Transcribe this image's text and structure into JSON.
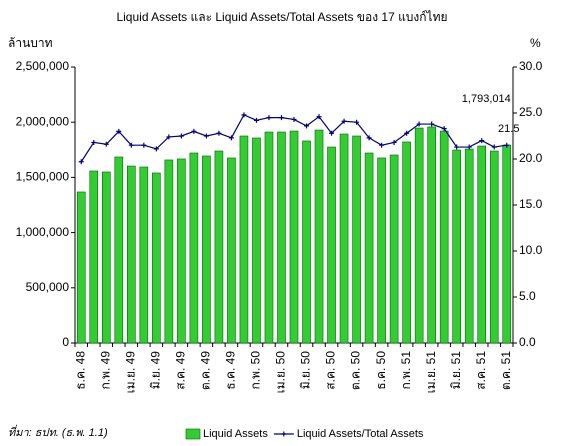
{
  "chart_data": {
    "type": "bar_line",
    "title": "Liquid Assets และ Liquid Assets/Total Assets ของ 17 แบงก์ไทย",
    "y_label": "ล้านบาท",
    "y2_label": "%",
    "source": "ที่มา: ธปท. (ธ.พ. 1.1)",
    "categories": [
      "ธ.ค. 48",
      null,
      "ก.พ. 49",
      null,
      "เม.ย. 49",
      null,
      "มิ.ย. 49",
      null,
      "ส.ค. 49",
      null,
      "ต.ค. 49",
      null,
      "ธ.ค. 49",
      null,
      "ก.พ. 50",
      null,
      "เม.ย. 50",
      null,
      "มิ.ย. 50",
      null,
      "ส.ค. 50",
      null,
      "ต.ค. 50",
      null,
      "ธ.ค. 50",
      null,
      "ก.พ. 51",
      null,
      "เม.ย. 51",
      null,
      "มิ.ย. 51",
      null,
      "ส.ค. 51",
      null,
      "ต.ค. 51"
    ],
    "series": [
      {
        "name": "Liquid Assets",
        "type": "bar",
        "color": "#33cc33",
        "values": [
          1368000,
          1558000,
          1549000,
          1685000,
          1603000,
          1594000,
          1540000,
          1658000,
          1667000,
          1721000,
          1694000,
          1739000,
          1676000,
          1875000,
          1857000,
          1911000,
          1911000,
          1920000,
          1830000,
          1929000,
          1775000,
          1893000,
          1875000,
          1721000,
          1676000,
          1703000,
          1821000,
          1947000,
          1957000,
          1920000,
          1748000,
          1757000,
          1784000,
          1739000,
          1793014
        ],
        "value_labels": [
          null,
          null,
          null,
          null,
          null,
          null,
          null,
          null,
          null,
          null,
          null,
          null,
          null,
          null,
          null,
          null,
          null,
          null,
          null,
          null,
          null,
          null,
          null,
          null,
          null,
          null,
          null,
          null,
          null,
          null,
          null,
          null,
          null,
          null,
          "1,793,014"
        ]
      },
      {
        "name": "Liquid Assets/Total Assets",
        "type": "line",
        "axis": "y2",
        "color": "#000080",
        "values": [
          19.7,
          21.8,
          21.6,
          23.0,
          21.5,
          21.5,
          21.1,
          22.4,
          22.5,
          23.0,
          22.5,
          22.8,
          22.3,
          24.8,
          24.2,
          24.5,
          24.5,
          24.3,
          23.6,
          24.6,
          22.8,
          24.1,
          24.0,
          22.3,
          21.5,
          21.8,
          22.8,
          23.8,
          23.8,
          23.3,
          21.3,
          21.3,
          22.0,
          21.3,
          21.5
        ],
        "value_labels": [
          null,
          null,
          null,
          null,
          null,
          null,
          null,
          null,
          null,
          null,
          null,
          null,
          null,
          null,
          null,
          null,
          null,
          null,
          null,
          null,
          null,
          null,
          null,
          null,
          null,
          null,
          null,
          null,
          null,
          null,
          null,
          null,
          null,
          null,
          "21.5"
        ]
      }
    ],
    "ylim": [
      0,
      2500000
    ],
    "yticks": [
      {
        "value": 0,
        "label": "0"
      },
      {
        "value": 500000,
        "label": "500,000"
      },
      {
        "value": 1000000,
        "label": "1,000,000"
      },
      {
        "value": 1500000,
        "label": "1,500,000"
      },
      {
        "value": 2000000,
        "label": "2,000,000"
      },
      {
        "value": 2500000,
        "label": "2,500,000"
      }
    ],
    "y2lim": [
      0,
      30
    ],
    "y2ticks": [
      {
        "value": 0,
        "label": "0.0"
      },
      {
        "value": 5,
        "label": "5.0"
      },
      {
        "value": 10,
        "label": "10.0"
      },
      {
        "value": 15,
        "label": "15.0"
      },
      {
        "value": 20,
        "label": "20.0"
      },
      {
        "value": 25,
        "label": "25.0"
      },
      {
        "value": 30,
        "label": "30.0"
      }
    ],
    "legend": "bottom"
  }
}
